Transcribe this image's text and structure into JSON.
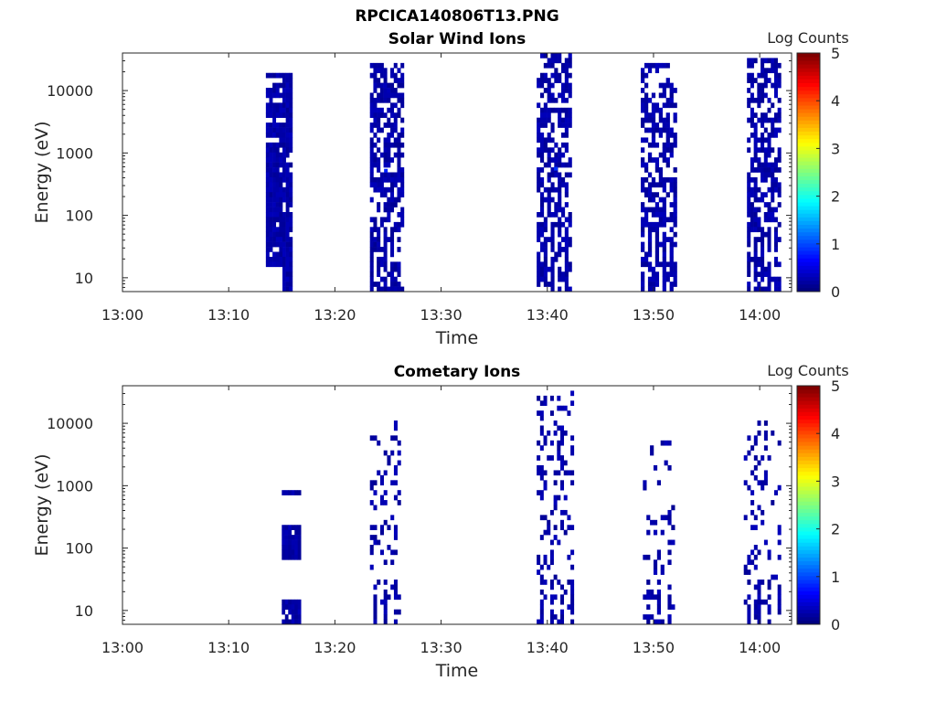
{
  "figure_title": "RPCICA140806T13.PNG",
  "chart_data": [
    {
      "type": "heatmap",
      "title": "Solar Wind Ions",
      "xlabel": "Time",
      "ylabel": "Energy (eV)",
      "x_ticks": [
        "13:00",
        "13:10",
        "13:20",
        "13:30",
        "13:40",
        "13:50",
        "14:00"
      ],
      "x_range_minutes": [
        0,
        63
      ],
      "y_scale": "log",
      "y_range": [
        6,
        40000
      ],
      "y_ticks": [
        "10",
        "100",
        "1000",
        "10000"
      ],
      "colorbar": {
        "label": "Log Counts",
        "ticks": [
          "0",
          "1",
          "2",
          "3",
          "4",
          "5"
        ],
        "range": [
          0,
          5
        ],
        "colormap": "jet"
      },
      "grid": false,
      "bursts": [
        {
          "t_start": 13.5,
          "t_end": 16.0,
          "e_min": 6,
          "e_max": 20000,
          "density": 0.9,
          "style": "solid"
        },
        {
          "t_start": 23.3,
          "t_end": 26.5,
          "e_min": 6,
          "e_max": 30000,
          "density": 0.62,
          "style": "speckle"
        },
        {
          "t_start": 39.0,
          "t_end": 42.3,
          "e_min": 6,
          "e_max": 40000,
          "density": 0.58,
          "style": "speckle"
        },
        {
          "t_start": 48.8,
          "t_end": 52.2,
          "e_min": 6,
          "e_max": 28000,
          "density": 0.55,
          "style": "speckle"
        },
        {
          "t_start": 58.8,
          "t_end": 62.0,
          "e_min": 6,
          "e_max": 35000,
          "density": 0.58,
          "style": "speckle"
        }
      ],
      "highlights": [
        {
          "t": 24.8,
          "e": 520,
          "value": 0.6
        },
        {
          "t": 40.8,
          "e": 560,
          "value": 0.7
        }
      ]
    },
    {
      "type": "heatmap",
      "title": "Cometary Ions",
      "xlabel": "Time",
      "ylabel": "Energy (eV)",
      "x_ticks": [
        "13:00",
        "13:10",
        "13:20",
        "13:30",
        "13:40",
        "13:50",
        "14:00"
      ],
      "x_range_minutes": [
        0,
        63
      ],
      "y_scale": "log",
      "y_range": [
        6,
        40000
      ],
      "y_ticks": [
        "10",
        "100",
        "1000",
        "10000"
      ],
      "colorbar": {
        "label": "Log Counts",
        "ticks": [
          "0",
          "1",
          "2",
          "3",
          "4",
          "5"
        ],
        "range": [
          0,
          5
        ],
        "colormap": "jet"
      },
      "grid": false,
      "bursts": [
        {
          "t_start": 15.0,
          "t_end": 16.8,
          "e_min": 6,
          "e_max": 800,
          "density": 0.35,
          "style": "sparse-bands"
        },
        {
          "t_start": 23.3,
          "t_end": 26.2,
          "e_min": 6,
          "e_max": 12000,
          "density": 0.18,
          "style": "sparse"
        },
        {
          "t_start": 39.0,
          "t_end": 42.5,
          "e_min": 6,
          "e_max": 33000,
          "density": 0.25,
          "style": "sparse"
        },
        {
          "t_start": 49.0,
          "t_end": 52.0,
          "e_min": 6,
          "e_max": 5000,
          "density": 0.16,
          "style": "sparse"
        },
        {
          "t_start": 58.5,
          "t_end": 62.0,
          "e_min": 6,
          "e_max": 12000,
          "density": 0.2,
          "style": "sparse"
        }
      ],
      "highlights": []
    }
  ]
}
